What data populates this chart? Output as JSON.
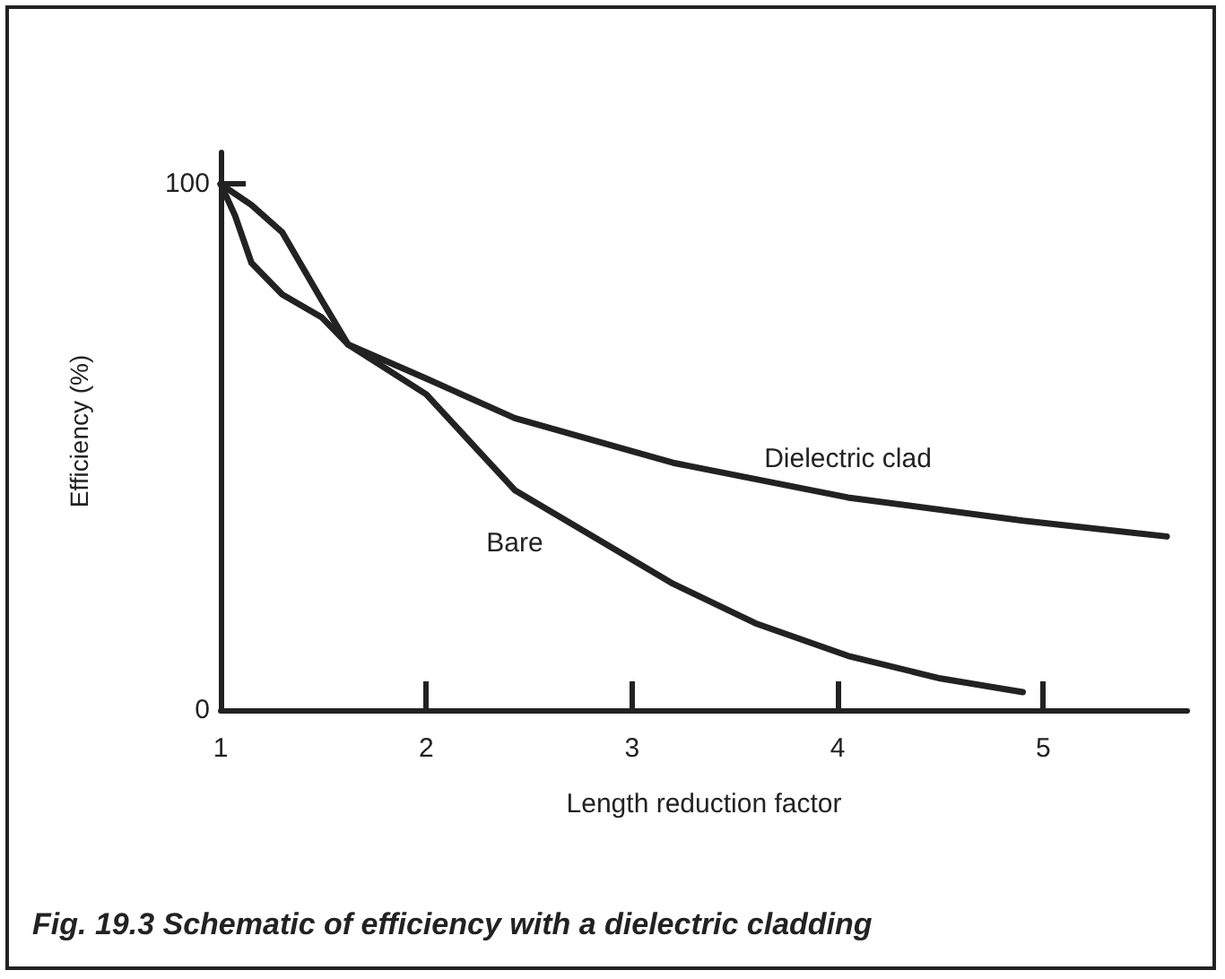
{
  "chart_data": {
    "type": "line",
    "title": "Fig. 19.3 Schematic of efficiency with a dielectric cladding",
    "xlabel": "Length reduction factor",
    "ylabel": "Efficiency (%)",
    "xlim": [
      1,
      5.7
    ],
    "ylim": [
      0,
      106
    ],
    "xticks": [
      1,
      2,
      3,
      4,
      5
    ],
    "yticks": [
      0,
      100
    ],
    "grid": false,
    "legend": false,
    "marker": "none",
    "line_style": "solid",
    "series": [
      {
        "name": "Dielectric clad",
        "color": "#222222",
        "x": [
          1,
          1.07,
          1.15,
          1.3,
          1.49,
          1.62,
          2.0,
          2.43,
          3.2,
          4.05,
          4.9,
          5.6
        ],
        "values": [
          100,
          94,
          85,
          79,
          74.7,
          69.5,
          63,
          55.5,
          47,
          40.4,
          36,
          33
        ]
      },
      {
        "name": "Bare",
        "color": "#222222",
        "x": [
          1,
          1.15,
          1.3,
          1.49,
          1.62,
          2.0,
          2.43,
          3.2,
          3.6,
          4.05,
          4.5,
          4.9
        ],
        "values": [
          100,
          96,
          90.8,
          78,
          69.5,
          60,
          41.8,
          24,
          16.5,
          10.3,
          6,
          3.4
        ]
      }
    ]
  }
}
